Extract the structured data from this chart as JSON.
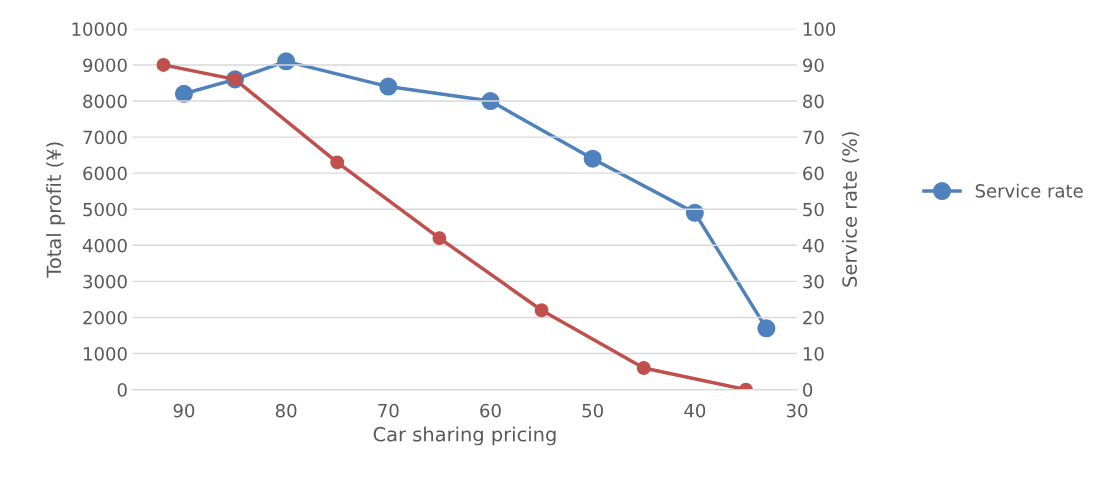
{
  "chart_data": {
    "type": "line",
    "xlabel": "Car sharing pricing",
    "ylabel": "Total profit (¥)",
    "y2label": "Service rate (%)",
    "xlim": [
      95,
      30
    ],
    "xticks": [
      90,
      80,
      70,
      60,
      50,
      40,
      30
    ],
    "ylim": [
      0,
      10000
    ],
    "yticks": [
      0,
      1000,
      2000,
      3000,
      4000,
      5000,
      6000,
      7000,
      8000,
      9000,
      10000
    ],
    "y2lim": [
      0,
      100
    ],
    "y2ticks": [
      0,
      10,
      20,
      30,
      40,
      50,
      60,
      70,
      80,
      90,
      100
    ],
    "grid": "y",
    "legend": "right",
    "marker": "circle",
    "line_style": "solid",
    "series": [
      {
        "name": "Service rate",
        "color": "#4f81bd",
        "axis": "y2",
        "x": [
          90,
          85,
          80,
          70,
          60,
          50,
          40,
          33
        ],
        "values": [
          82,
          86,
          91,
          84,
          80,
          64,
          49,
          17
        ]
      },
      {
        "color": "#c0504d",
        "x": [
          92,
          85,
          75,
          65,
          55,
          45,
          35
        ],
        "values": [
          9000,
          8600,
          6300,
          4200,
          2200,
          600,
          0
        ]
      }
    ]
  }
}
